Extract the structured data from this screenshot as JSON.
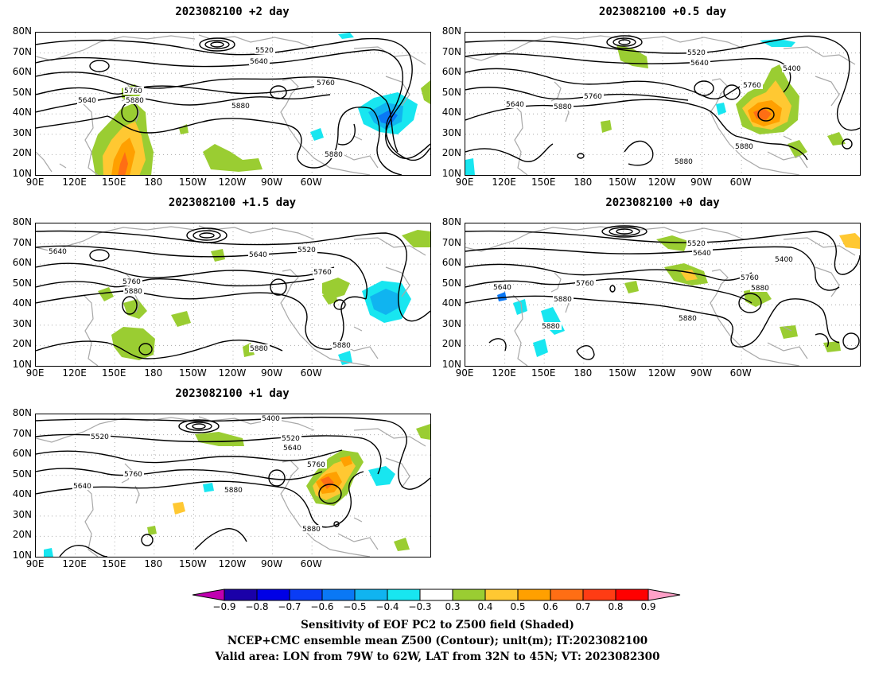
{
  "panels": [
    {
      "id": "p1",
      "title": "2023082100 +2 day",
      "contours": [
        "5520",
        "5640",
        "5640",
        "5760",
        "5880",
        "5760",
        "5880"
      ]
    },
    {
      "id": "p2",
      "title": "2023082100 +0.5 day",
      "contours": [
        "5520",
        "5640",
        "5400",
        "5760",
        "5640",
        "5760",
        "5880",
        "5880"
      ]
    },
    {
      "id": "p3",
      "title": "2023082100 +1.5 day",
      "contours": [
        "5640",
        "5640",
        "5520",
        "5760",
        "5880",
        "5760",
        "5880",
        "5880"
      ]
    },
    {
      "id": "p4",
      "title": "2023082100 +0 day",
      "contours": [
        "5520",
        "5640",
        "5400",
        "5640",
        "5760",
        "5760",
        "5880",
        "5880",
        "5880",
        "5880"
      ]
    },
    {
      "id": "p5",
      "title": "2023082100 +1 day",
      "contours": [
        "5400",
        "5520",
        "5520",
        "5640",
        "5640",
        "5760",
        "5760",
        "5880",
        "5880"
      ]
    }
  ],
  "axes": {
    "lat_labels": [
      "80N",
      "70N",
      "60N",
      "50N",
      "40N",
      "30N",
      "20N",
      "10N"
    ],
    "lon_labels": [
      "90E",
      "120E",
      "150E",
      "180",
      "150W",
      "120W",
      "90W",
      "60W"
    ]
  },
  "colorbar": {
    "tick_labels": [
      "-0.9",
      "-0.8",
      "-0.7",
      "-0.6",
      "-0.5",
      "-0.4",
      "-0.3",
      "0.3",
      "0.4",
      "0.5",
      "0.6",
      "0.7",
      "0.8",
      "0.9"
    ],
    "colors": [
      "#c000b0",
      "#1a00a8",
      "#0000e6",
      "#0a3cf5",
      "#0a78f5",
      "#10b4f0",
      "#18e6f0",
      "#ffffff",
      "#9acd32",
      "#ffc832",
      "#ffa000",
      "#ff6e14",
      "#ff3c14",
      "#ff0000",
      "#ffa0c8"
    ]
  },
  "captions": {
    "line1": "Sensitivity of EOF PC2 to Z500 field (Shaded)",
    "line2": "NCEP+CMC ensemble mean Z500 (Contour); unit(m); IT:2023082100",
    "line3": "Valid area: LON from 79W to 62W, LAT from 32N to 45N; VT: 2023082300"
  },
  "style": {
    "contour_color": "#000000",
    "coast_color": "#a8a8a8",
    "grid_color": "#aaaaaa"
  }
}
